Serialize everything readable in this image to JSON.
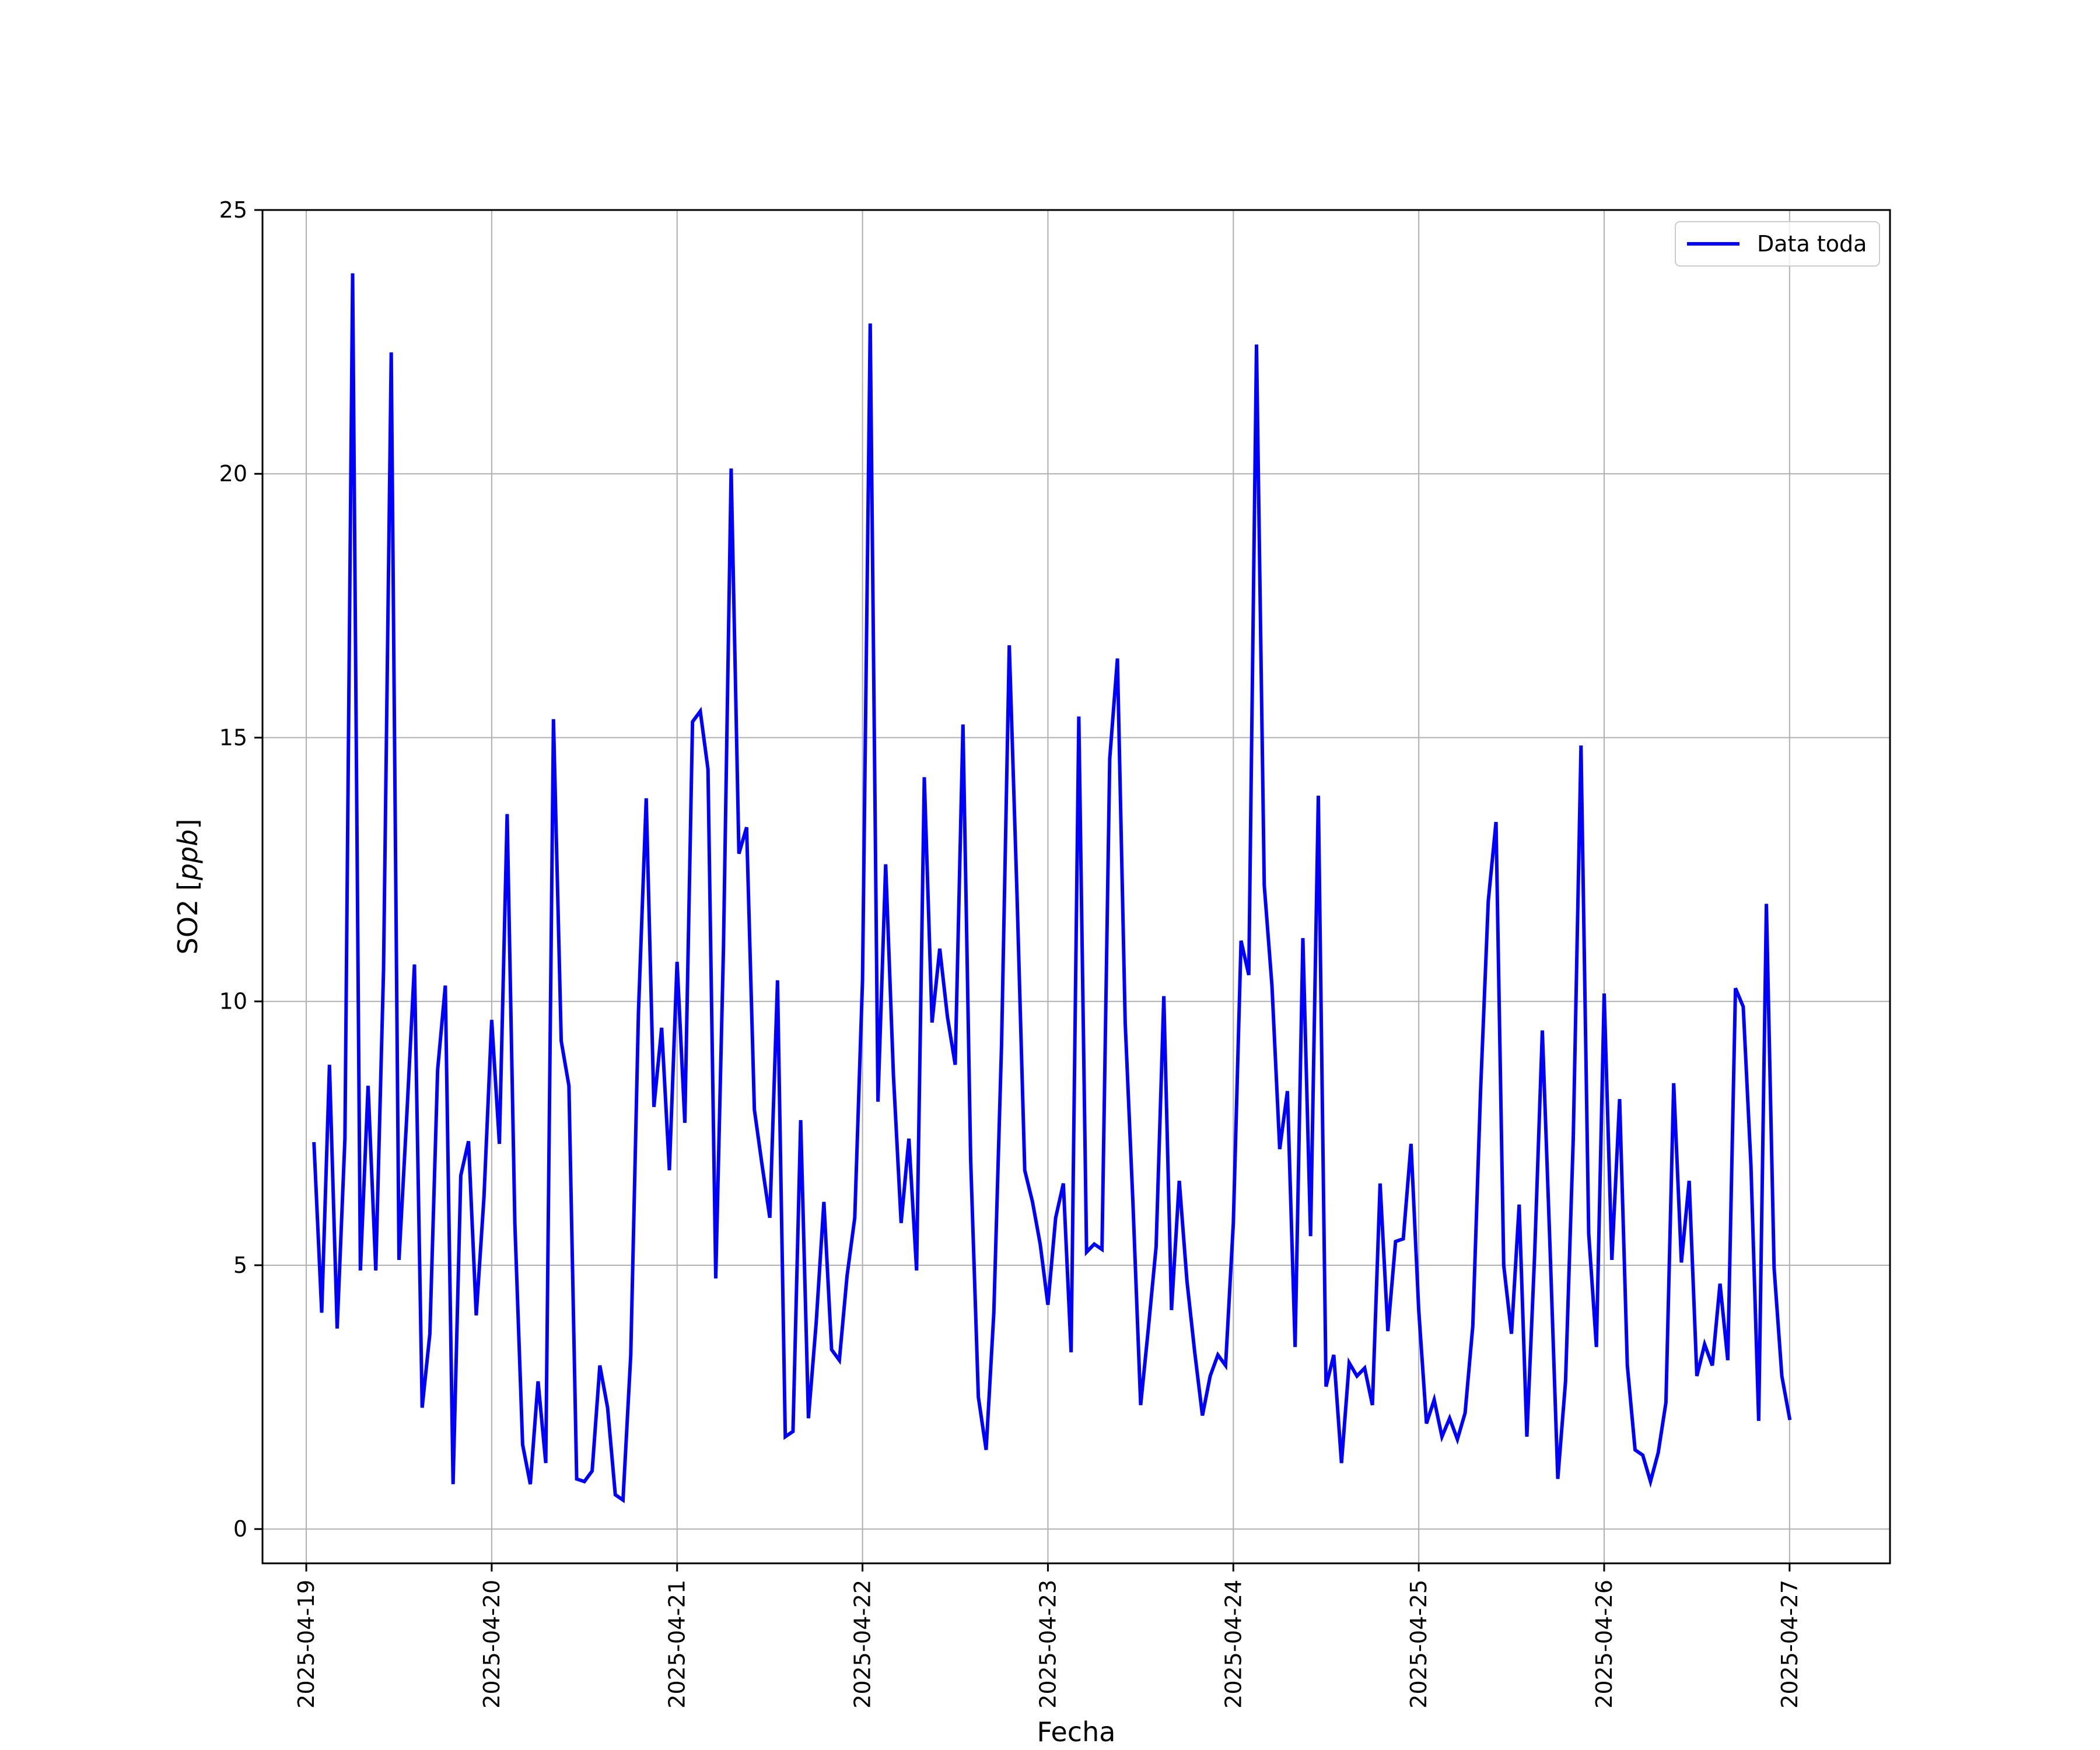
{
  "chart_data": {
    "type": "line",
    "title": "",
    "xlabel": "Fecha",
    "ylabel_prefix": "SO2 [",
    "ylabel_unit": "ppb",
    "ylabel_suffix": "]",
    "x_axis_type": "date",
    "x_start": "2025-04-19T01:00",
    "x_step_hours": 1,
    "xlim": [
      "2025-04-18T18:20",
      "2025-04-27T13:00"
    ],
    "ylim": [
      -0.65,
      25.0
    ],
    "x_ticks": [
      "2025-04-19",
      "2025-04-20",
      "2025-04-21",
      "2025-04-22",
      "2025-04-23",
      "2025-04-24",
      "2025-04-25",
      "2025-04-26",
      "2025-04-27"
    ],
    "y_ticks": [
      0,
      5,
      10,
      15,
      20,
      25
    ],
    "y_tick_labels": [
      "0",
      "5",
      "10",
      "15",
      "20",
      "25"
    ],
    "grid": true,
    "legend_position": "top-right",
    "series": [
      {
        "name": "Data toda",
        "color": "#0000ff",
        "values": [
          7.3,
          4.1,
          8.8,
          3.8,
          7.4,
          23.8,
          4.9,
          8.4,
          4.9,
          10.6,
          22.3,
          5.1,
          7.8,
          10.7,
          2.3,
          3.7,
          8.7,
          10.3,
          0.85,
          6.7,
          7.35,
          4.05,
          6.3,
          9.65,
          7.3,
          13.55,
          5.8,
          1.6,
          0.85,
          2.8,
          1.25,
          15.35,
          9.25,
          8.4,
          0.95,
          0.9,
          1.1,
          3.1,
          2.3,
          0.65,
          0.55,
          3.3,
          9.8,
          13.85,
          8.0,
          9.5,
          6.8,
          10.75,
          7.7,
          15.3,
          15.5,
          14.4,
          4.75,
          11.0,
          20.1,
          12.8,
          13.3,
          7.95,
          6.9,
          5.9,
          10.4,
          1.75,
          1.85,
          7.75,
          2.1,
          3.9,
          6.2,
          3.4,
          3.2,
          4.8,
          5.9,
          10.4,
          22.85,
          8.1,
          12.6,
          8.6,
          5.8,
          7.4,
          4.9,
          14.25,
          9.6,
          11.0,
          9.7,
          8.8,
          15.25,
          7.0,
          2.5,
          1.5,
          4.1,
          9.2,
          16.75,
          12.0,
          6.8,
          6.2,
          5.4,
          4.25,
          5.9,
          6.55,
          3.35,
          15.4,
          5.25,
          5.4,
          5.3,
          14.6,
          16.5,
          9.6,
          6.2,
          2.35,
          3.8,
          5.35,
          10.1,
          4.15,
          6.6,
          4.7,
          3.35,
          2.15,
          2.9,
          3.3,
          3.1,
          5.8,
          11.15,
          10.5,
          22.45,
          12.2,
          10.3,
          7.2,
          8.3,
          3.45,
          11.2,
          5.55,
          13.9,
          2.7,
          3.3,
          1.25,
          3.15,
          2.9,
          3.05,
          2.35,
          6.55,
          3.75,
          5.45,
          5.5,
          7.3,
          4.15,
          2.0,
          2.45,
          1.75,
          2.1,
          1.7,
          2.2,
          3.85,
          8.3,
          11.9,
          13.4,
          5.0,
          3.7,
          6.15,
          1.75,
          5.2,
          9.45,
          5.3,
          0.95,
          2.8,
          7.4,
          14.85,
          5.6,
          3.45,
          10.15,
          5.1,
          8.15,
          3.1,
          1.5,
          1.4,
          0.9,
          1.45,
          2.4,
          8.45,
          5.05,
          6.6,
          2.9,
          3.5,
          3.1,
          4.65,
          3.2,
          10.25,
          9.9,
          6.9,
          2.05,
          11.85,
          4.95,
          2.9,
          2.1
        ]
      }
    ]
  }
}
